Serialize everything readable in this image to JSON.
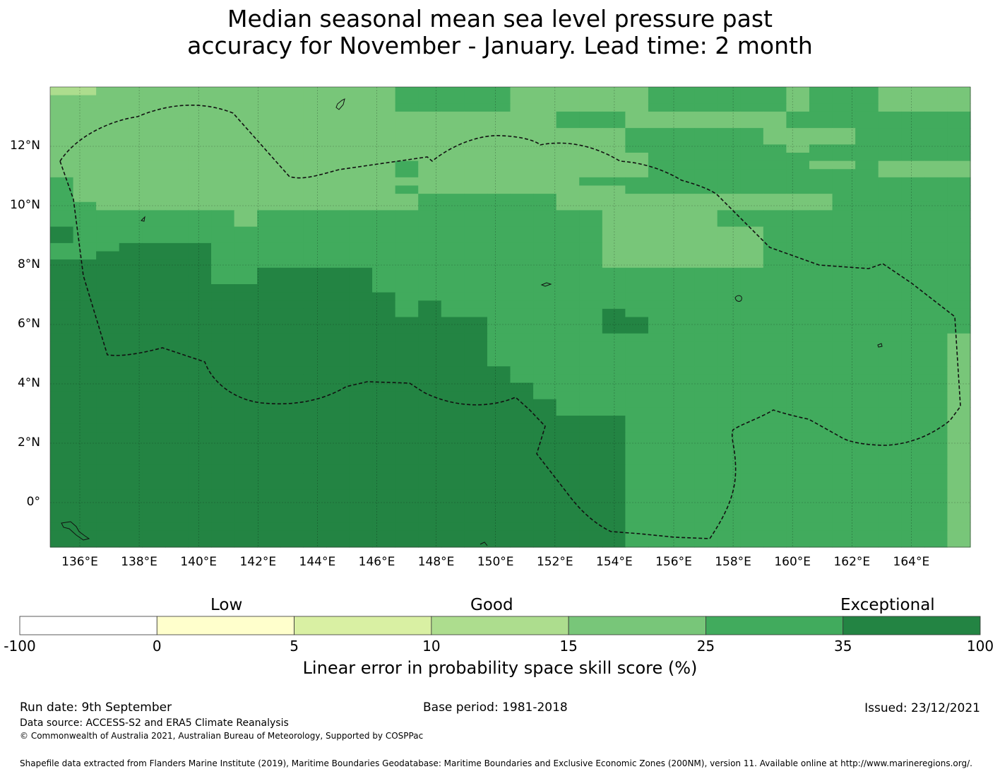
{
  "title": {
    "line1": "Median seasonal mean sea level pressure past",
    "line2": "accuracy for November - January. Lead time: 2 month"
  },
  "map": {
    "lon_labels": [
      "136°E",
      "138°E",
      "140°E",
      "142°E",
      "144°E",
      "146°E",
      "148°E",
      "150°E",
      "152°E",
      "154°E",
      "156°E",
      "158°E",
      "160°E",
      "162°E",
      "164°E"
    ],
    "lat_labels": [
      "12°N",
      "10°N",
      "8°N",
      "6°N",
      "4°N",
      "2°N",
      "0°"
    ],
    "palette": [
      "#ffffff",
      "#ffffcc",
      "#d9f0a3",
      "#addd8e",
      "#78c679",
      "#41ab5d",
      "#238443"
    ],
    "grid_rows": [
      "3344444444444445555544444455555545554444",
      "4444444444444445555544444455555545554444",
      "4444444444444445555544444455555545554444",
      "4444444444444444444444555444444455555555",
      "4444444444444444444444555444444455555555",
      "4444444444444444444444444555555444455555",
      "4444444444444444444444444555555444455555",
      "4444444444444444444444444555555545555555",
      "4444444444444444444444444455555555555555",
      "4444444444444445444444444455555554454444",
      "4444444444444445444444444455555555554444",
      "5444444444444444444444455555555555555555",
      "5444444444444445444444444555555555555555",
      "5444444444444444555555444444444444555555",
      "5544444444444444555555444444444444555555",
      "5555555545555555555555554444455555555555",
      "5555555545555555555555554444455555555555",
      "6555555555555555555555554444444555555555",
      "6555555555555555555555554444444555555555",
      "5556666555555555555555554444444555555555",
      "5566666555555555555555554444444555555555",
      "6666666555555555555555554444444555555555",
      "6666666556666655555555555555555555555555",
      "6666666556666655555555555555555555555555",
      "6666666666666655555555555555555555555555",
      "6666666666666665555555555555555555555555",
      "6666666666666665655555555555555555555555",
      "6666666666666665655555556555555555555555",
      "6666666666666666666555556655555555555555",
      "6666666666666666666555556655555555555555",
      "6666666666666666666555555555555555555554",
      "6666666666666666666555555555555555555554",
      "6666666666666666666555555555555555555554",
      "6666666666666666666555555555555555555554",
      "6666666666666666666655555555555555555554",
      "6666666666666666666655555555555555555554",
      "6666666666666666666665555555555555555554",
      "6666666666666666666665555555555555555554",
      "6666666666666666666666555555555555555554",
      "6666666666666666666666555555555555555554",
      "6666666666666666666666666555555555555554",
      "6666666666666666666666666555555555555554",
      "6666666666666666666666666555555555555554",
      "6666666666666666666666666555555555555554",
      "6666666666666666666666666555555555555554",
      "6666666666666666666666666555555555555554",
      "6666666666666666666666666555555555555554",
      "6666666666666666666666666555555555555554",
      "6666666666666666666666666555555555555554",
      "6666666666666666666666666555555555555554",
      "6666666666666666666666666555555555555554",
      "6666666666666666666666666555555555555554",
      "6666666666666666666666666555555555555554",
      "6666666666666666666666666555555555555554",
      "6666666666666666666666666555555555555554",
      "6666666666666666666666666555555555555554"
    ]
  },
  "colorbar": {
    "categories": [
      "Low",
      "Good",
      "Exceptional"
    ],
    "ticks": [
      "-100",
      "0",
      "5",
      "10",
      "15",
      "25",
      "35",
      "100"
    ],
    "colors": [
      "#ffffff",
      "#ffffcc",
      "#d9f0a3",
      "#addd8e",
      "#78c679",
      "#41ab5d",
      "#238443"
    ],
    "label": "Linear error in probability space skill score (%)"
  },
  "footer": {
    "run_date": "Run date: 9th September",
    "base_period": "Base period: 1981-2018",
    "issued": "Issued: 23/12/2021",
    "data_source": "Data source: ACCESS-S2 and ERA5 Climate Reanalysis",
    "copyright": "© Commonwealth of Australia 2021, Australian Bureau of Meteorology, Supported by COSPPac",
    "shapefile": "Shapefile data extracted from Flanders Marine Institute (2019), Maritime Boundaries Geodatabase: Maritime Boundaries and Exclusive Economic Zones (200NM), version 11. Available online at http://www.marineregions.org/."
  }
}
